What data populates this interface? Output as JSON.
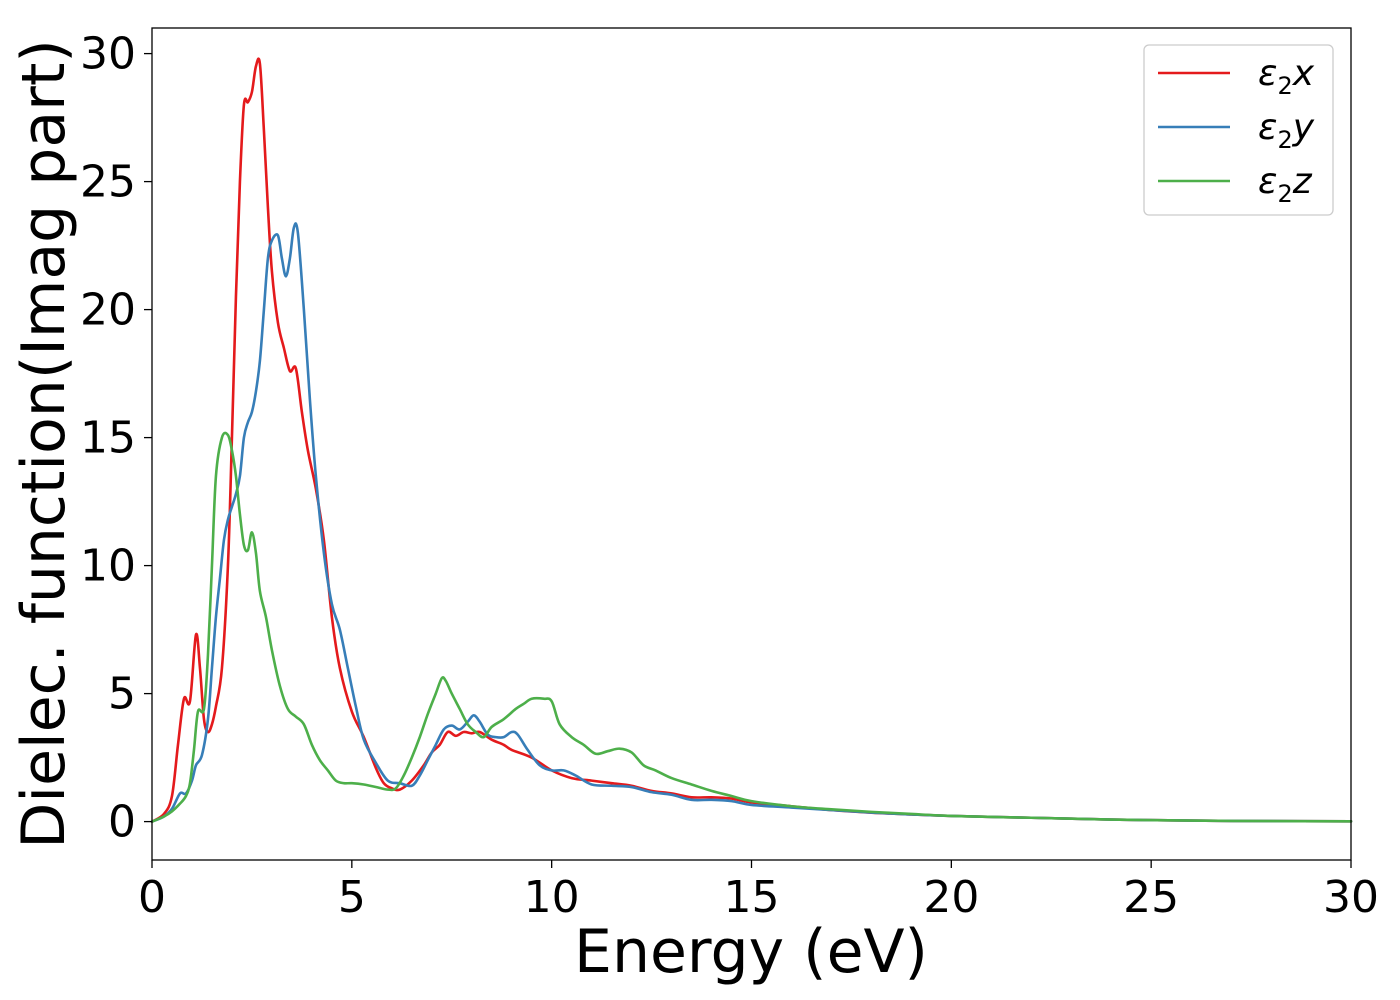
{
  "chart_data": {
    "type": "line",
    "xlabel": "Energy (eV)",
    "ylabel": "Dielec. function(Imag part)",
    "xlim": [
      0,
      30
    ],
    "ylim": [
      -1.5,
      31
    ],
    "xticks": [
      0,
      5,
      10,
      15,
      20,
      25,
      30
    ],
    "yticks": [
      0,
      5,
      10,
      15,
      20,
      25,
      30
    ],
    "grid": false,
    "legend_position": "top-right",
    "series": [
      {
        "name": "ε₂x",
        "legend_base": "ε",
        "legend_sub": "2",
        "legend_suffix": "x",
        "color": "#e41a1c",
        "points": [
          [
            0,
            0
          ],
          [
            0.3,
            0.3
          ],
          [
            0.5,
            1.0
          ],
          [
            0.65,
            3.0
          ],
          [
            0.8,
            4.8
          ],
          [
            0.95,
            4.7
          ],
          [
            1.1,
            7.3
          ],
          [
            1.2,
            6.0
          ],
          [
            1.3,
            4.0
          ],
          [
            1.4,
            3.5
          ],
          [
            1.5,
            3.8
          ],
          [
            1.6,
            4.5
          ],
          [
            1.75,
            6.0
          ],
          [
            1.9,
            10.0
          ],
          [
            2.0,
            15.0
          ],
          [
            2.1,
            20.5
          ],
          [
            2.2,
            25.0
          ],
          [
            2.3,
            28.0
          ],
          [
            2.4,
            28.1
          ],
          [
            2.5,
            28.5
          ],
          [
            2.6,
            29.5
          ],
          [
            2.7,
            29.6
          ],
          [
            2.8,
            27.0
          ],
          [
            2.9,
            24.0
          ],
          [
            3.0,
            21.5
          ],
          [
            3.15,
            19.5
          ],
          [
            3.3,
            18.5
          ],
          [
            3.45,
            17.6
          ],
          [
            3.6,
            17.7
          ],
          [
            3.75,
            16.0
          ],
          [
            3.9,
            14.5
          ],
          [
            4.1,
            13.0
          ],
          [
            4.3,
            11.0
          ],
          [
            4.5,
            8.0
          ],
          [
            4.7,
            6.0
          ],
          [
            5.0,
            4.3
          ],
          [
            5.3,
            3.3
          ],
          [
            5.6,
            2.1
          ],
          [
            5.8,
            1.5
          ],
          [
            6.0,
            1.3
          ],
          [
            6.2,
            1.25
          ],
          [
            6.5,
            1.6
          ],
          [
            6.8,
            2.2
          ],
          [
            7.0,
            2.7
          ],
          [
            7.2,
            3.0
          ],
          [
            7.4,
            3.5
          ],
          [
            7.6,
            3.35
          ],
          [
            7.8,
            3.5
          ],
          [
            8.0,
            3.45
          ],
          [
            8.2,
            3.5
          ],
          [
            8.5,
            3.2
          ],
          [
            8.8,
            3.0
          ],
          [
            9.0,
            2.8
          ],
          [
            9.5,
            2.5
          ],
          [
            10.0,
            2.0
          ],
          [
            10.5,
            1.7
          ],
          [
            11.0,
            1.6
          ],
          [
            11.5,
            1.5
          ],
          [
            12.0,
            1.4
          ],
          [
            12.5,
            1.2
          ],
          [
            13.0,
            1.1
          ],
          [
            13.5,
            0.95
          ],
          [
            14.0,
            0.95
          ],
          [
            14.5,
            0.9
          ],
          [
            15.0,
            0.75
          ],
          [
            16.0,
            0.6
          ],
          [
            17.0,
            0.45
          ],
          [
            18.0,
            0.35
          ],
          [
            19.0,
            0.28
          ],
          [
            20.0,
            0.22
          ],
          [
            22.0,
            0.15
          ],
          [
            24.0,
            0.08
          ],
          [
            26.0,
            0.04
          ],
          [
            28.0,
            0.02
          ],
          [
            30.0,
            0.01
          ]
        ]
      },
      {
        "name": "ε₂y",
        "legend_base": "ε",
        "legend_sub": "2",
        "legend_suffix": "y",
        "color": "#377eb8",
        "points": [
          [
            0,
            0
          ],
          [
            0.3,
            0.2
          ],
          [
            0.5,
            0.5
          ],
          [
            0.7,
            1.1
          ],
          [
            0.85,
            1.1
          ],
          [
            1.0,
            1.6
          ],
          [
            1.1,
            2.2
          ],
          [
            1.25,
            2.6
          ],
          [
            1.4,
            4.0
          ],
          [
            1.5,
            6.0
          ],
          [
            1.6,
            8.0
          ],
          [
            1.7,
            9.5
          ],
          [
            1.8,
            11.0
          ],
          [
            1.9,
            11.8
          ],
          [
            2.0,
            12.3
          ],
          [
            2.1,
            12.8
          ],
          [
            2.2,
            13.5
          ],
          [
            2.3,
            15.0
          ],
          [
            2.4,
            15.6
          ],
          [
            2.5,
            16.0
          ],
          [
            2.6,
            16.8
          ],
          [
            2.7,
            18.0
          ],
          [
            2.8,
            20.0
          ],
          [
            2.9,
            22.0
          ],
          [
            3.0,
            22.7
          ],
          [
            3.15,
            22.9
          ],
          [
            3.25,
            22.0
          ],
          [
            3.35,
            21.3
          ],
          [
            3.45,
            22.0
          ],
          [
            3.55,
            23.2
          ],
          [
            3.65,
            23.0
          ],
          [
            3.8,
            20.0
          ],
          [
            3.95,
            16.5
          ],
          [
            4.1,
            13.5
          ],
          [
            4.3,
            10.5
          ],
          [
            4.5,
            8.5
          ],
          [
            4.7,
            7.5
          ],
          [
            4.9,
            6.0
          ],
          [
            5.1,
            4.5
          ],
          [
            5.3,
            3.2
          ],
          [
            5.6,
            2.3
          ],
          [
            5.9,
            1.6
          ],
          [
            6.2,
            1.5
          ],
          [
            6.5,
            1.4
          ],
          [
            6.7,
            1.8
          ],
          [
            6.9,
            2.4
          ],
          [
            7.1,
            3.0
          ],
          [
            7.3,
            3.6
          ],
          [
            7.5,
            3.75
          ],
          [
            7.7,
            3.6
          ],
          [
            7.9,
            3.9
          ],
          [
            8.05,
            4.15
          ],
          [
            8.2,
            3.9
          ],
          [
            8.4,
            3.4
          ],
          [
            8.6,
            3.3
          ],
          [
            8.8,
            3.3
          ],
          [
            9.0,
            3.5
          ],
          [
            9.15,
            3.4
          ],
          [
            9.4,
            2.8
          ],
          [
            9.7,
            2.2
          ],
          [
            10.0,
            2.0
          ],
          [
            10.3,
            2.0
          ],
          [
            10.6,
            1.8
          ],
          [
            11.0,
            1.45
          ],
          [
            11.5,
            1.4
          ],
          [
            12.0,
            1.35
          ],
          [
            12.5,
            1.15
          ],
          [
            13.0,
            1.05
          ],
          [
            13.5,
            0.85
          ],
          [
            14.0,
            0.85
          ],
          [
            14.5,
            0.8
          ],
          [
            15.0,
            0.65
          ],
          [
            16.0,
            0.55
          ],
          [
            17.0,
            0.45
          ],
          [
            18.0,
            0.35
          ],
          [
            19.0,
            0.28
          ],
          [
            20.0,
            0.22
          ],
          [
            22.0,
            0.15
          ],
          [
            24.0,
            0.08
          ],
          [
            26.0,
            0.04
          ],
          [
            28.0,
            0.02
          ],
          [
            30.0,
            0.01
          ]
        ]
      },
      {
        "name": "ε₂z",
        "legend_base": "ε",
        "legend_sub": "2",
        "legend_suffix": "z",
        "color": "#4daf4a",
        "points": [
          [
            0,
            0
          ],
          [
            0.3,
            0.2
          ],
          [
            0.5,
            0.4
          ],
          [
            0.7,
            0.7
          ],
          [
            0.85,
            1.0
          ],
          [
            0.95,
            1.5
          ],
          [
            1.05,
            2.8
          ],
          [
            1.15,
            4.3
          ],
          [
            1.3,
            4.4
          ],
          [
            1.4,
            6.5
          ],
          [
            1.5,
            10.0
          ],
          [
            1.6,
            13.5
          ],
          [
            1.75,
            15.0
          ],
          [
            1.9,
            15.1
          ],
          [
            2.0,
            14.5
          ],
          [
            2.1,
            13.5
          ],
          [
            2.2,
            12.0
          ],
          [
            2.3,
            10.8
          ],
          [
            2.4,
            10.6
          ],
          [
            2.5,
            11.3
          ],
          [
            2.6,
            10.5
          ],
          [
            2.7,
            9.0
          ],
          [
            2.85,
            8.0
          ],
          [
            3.0,
            6.7
          ],
          [
            3.2,
            5.3
          ],
          [
            3.4,
            4.4
          ],
          [
            3.6,
            4.1
          ],
          [
            3.8,
            3.8
          ],
          [
            4.0,
            3.0
          ],
          [
            4.2,
            2.4
          ],
          [
            4.4,
            2.0
          ],
          [
            4.6,
            1.6
          ],
          [
            4.8,
            1.5
          ],
          [
            5.0,
            1.5
          ],
          [
            5.3,
            1.45
          ],
          [
            5.6,
            1.35
          ],
          [
            5.9,
            1.25
          ],
          [
            6.1,
            1.3
          ],
          [
            6.3,
            1.8
          ],
          [
            6.5,
            2.5
          ],
          [
            6.7,
            3.3
          ],
          [
            6.9,
            4.2
          ],
          [
            7.1,
            5.0
          ],
          [
            7.25,
            5.6
          ],
          [
            7.35,
            5.5
          ],
          [
            7.5,
            5.0
          ],
          [
            7.7,
            4.4
          ],
          [
            7.9,
            3.8
          ],
          [
            8.1,
            3.5
          ],
          [
            8.3,
            3.3
          ],
          [
            8.5,
            3.7
          ],
          [
            8.8,
            4.0
          ],
          [
            9.1,
            4.4
          ],
          [
            9.3,
            4.6
          ],
          [
            9.5,
            4.8
          ],
          [
            9.8,
            4.8
          ],
          [
            10.0,
            4.7
          ],
          [
            10.2,
            3.8
          ],
          [
            10.5,
            3.3
          ],
          [
            10.8,
            3.0
          ],
          [
            11.1,
            2.65
          ],
          [
            11.4,
            2.75
          ],
          [
            11.7,
            2.85
          ],
          [
            12.0,
            2.7
          ],
          [
            12.3,
            2.2
          ],
          [
            12.6,
            2.0
          ],
          [
            13.0,
            1.7
          ],
          [
            13.5,
            1.45
          ],
          [
            14.0,
            1.2
          ],
          [
            14.5,
            1.0
          ],
          [
            15.0,
            0.8
          ],
          [
            16.0,
            0.6
          ],
          [
            17.0,
            0.48
          ],
          [
            18.0,
            0.38
          ],
          [
            19.0,
            0.3
          ],
          [
            20.0,
            0.22
          ],
          [
            22.0,
            0.15
          ],
          [
            24.0,
            0.08
          ],
          [
            26.0,
            0.04
          ],
          [
            28.0,
            0.02
          ],
          [
            30.0,
            0.01
          ]
        ]
      }
    ]
  }
}
